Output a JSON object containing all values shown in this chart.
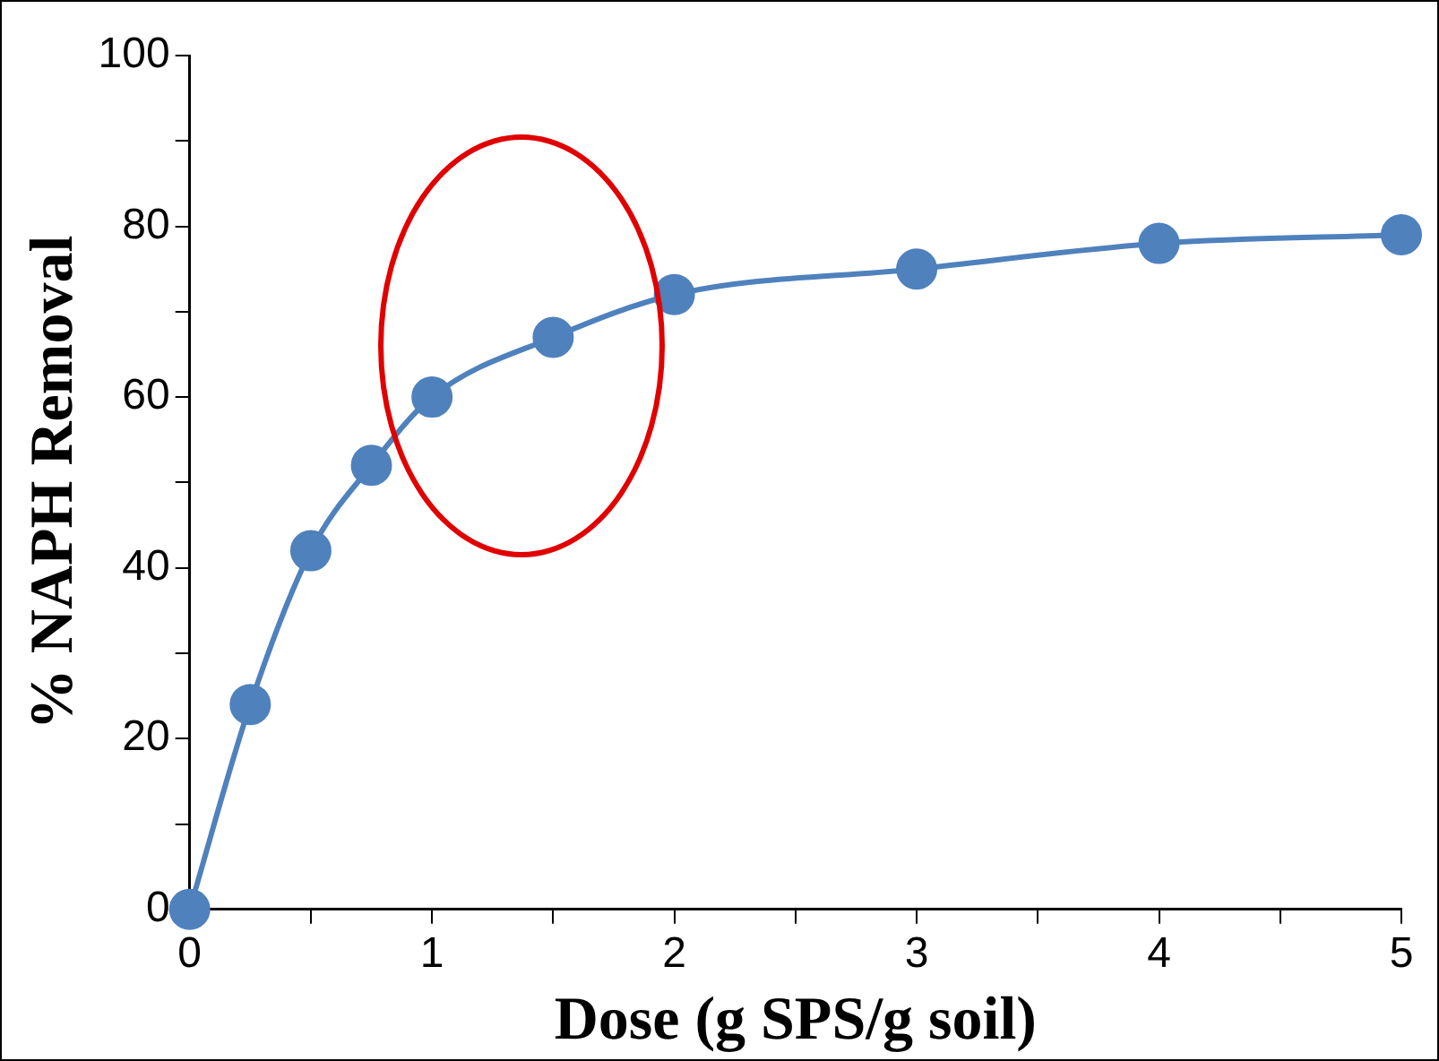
{
  "chart_data": {
    "type": "line",
    "xlabel": "Dose (g SPS/g soil)",
    "ylabel": "% NAPH Removal",
    "x": [
      0,
      0.25,
      0.5,
      0.75,
      1,
      1.5,
      2,
      3,
      4,
      5
    ],
    "series": [
      {
        "color": "#4f81bd",
        "values": [
          0,
          24,
          42,
          52,
          60,
          67,
          72,
          75,
          78,
          79
        ]
      }
    ],
    "xlim": [
      0,
      5
    ],
    "xticks": [
      0,
      {
        "value": 0.5,
        "label": null
      },
      1,
      {
        "value": 1.5,
        "label": null
      },
      2,
      {
        "value": 2.5,
        "label": null
      },
      3,
      {
        "value": 3.5,
        "label": null
      },
      4,
      {
        "value": 4.5,
        "label": null
      },
      5
    ],
    "ylim": [
      0,
      100
    ],
    "yticks": [
      0,
      {
        "value": 10,
        "label": null
      },
      20,
      {
        "value": 30,
        "label": null
      },
      40,
      {
        "value": 50,
        "label": null
      },
      60,
      {
        "value": 70,
        "label": null
      },
      80,
      {
        "value": 90,
        "label": null
      },
      100
    ],
    "grid": false,
    "legend": false,
    "marker": "circle",
    "line_style": "solid"
  }
}
